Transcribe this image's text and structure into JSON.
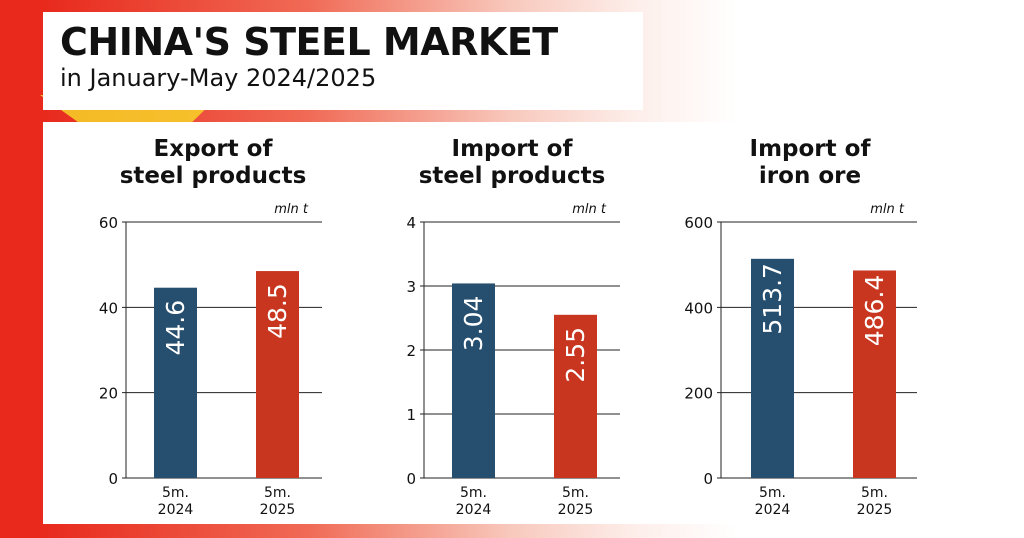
{
  "header": {
    "title": "CHINA'S STEEL MARKET",
    "subtitle": "in January-May 2024/2025"
  },
  "colors": {
    "bar_2024": "#264e6e",
    "bar_2025": "#c8361f",
    "grid": "#222222",
    "text": "#111111",
    "label": "#ffffff"
  },
  "chart_data": [
    {
      "type": "bar",
      "title": [
        "Export of",
        "steel products"
      ],
      "unit": "mln t",
      "categories": [
        [
          "5m.",
          "2024"
        ],
        [
          "5m.",
          "2025"
        ]
      ],
      "values": [
        44.6,
        48.5
      ],
      "value_labels": [
        "44.6",
        "48.5"
      ],
      "yticks": [
        0,
        20,
        40,
        60
      ],
      "ylim": [
        0,
        60
      ]
    },
    {
      "type": "bar",
      "title": [
        "Import of",
        "steel products"
      ],
      "unit": "mln t",
      "categories": [
        [
          "5m.",
          "2024"
        ],
        [
          "5m.",
          "2025"
        ]
      ],
      "values": [
        3.04,
        2.55
      ],
      "value_labels": [
        "3.04",
        "2.55"
      ],
      "yticks": [
        0,
        1,
        2,
        3,
        4
      ],
      "ylim": [
        0,
        4
      ]
    },
    {
      "type": "bar",
      "title": [
        "Import of",
        "iron ore"
      ],
      "unit": "mln t",
      "categories": [
        [
          "5m.",
          "2024"
        ],
        [
          "5m.",
          "2025"
        ]
      ],
      "values": [
        513.7,
        486.4
      ],
      "value_labels": [
        "513.7",
        "486.4"
      ],
      "yticks": [
        0,
        200,
        400,
        600
      ],
      "ylim": [
        0,
        600
      ]
    }
  ]
}
